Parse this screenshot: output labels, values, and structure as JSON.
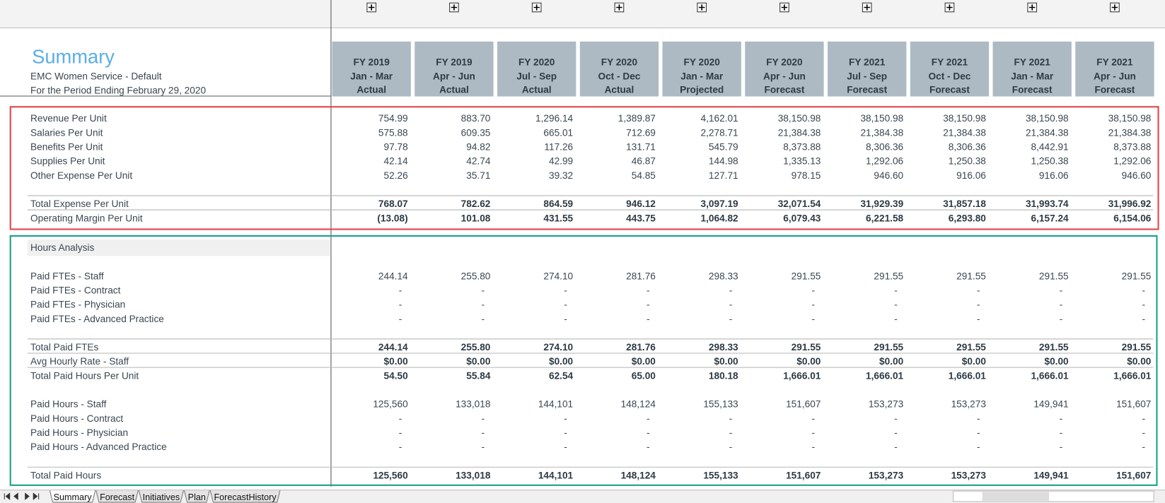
{
  "header": {
    "title": "Summary",
    "subtitle": "EMC Women Service - Default",
    "period": "For the Period Ending February 29, 2020"
  },
  "columns": [
    {
      "year": "FY 2019",
      "months": "Jan - Mar",
      "kind": "Actual"
    },
    {
      "year": "FY 2019",
      "months": "Apr - Jun",
      "kind": "Actual"
    },
    {
      "year": "FY 2020",
      "months": "Jul - Sep",
      "kind": "Actual"
    },
    {
      "year": "FY 2020",
      "months": "Oct - Dec",
      "kind": "Actual"
    },
    {
      "year": "FY 2020",
      "months": "Jan - Mar",
      "kind": "Projected"
    },
    {
      "year": "FY 2020",
      "months": "Apr - Jun",
      "kind": "Forecast"
    },
    {
      "year": "FY 2021",
      "months": "Jul - Sep",
      "kind": "Forecast"
    },
    {
      "year": "FY 2021",
      "months": "Oct - Dec",
      "kind": "Forecast"
    },
    {
      "year": "FY 2021",
      "months": "Jan - Mar",
      "kind": "Forecast"
    },
    {
      "year": "FY 2021",
      "months": "Apr - Jun",
      "kind": "Forecast"
    }
  ],
  "sections": [
    {
      "groups": [
        {
          "total": false,
          "rows": [
            {
              "label": "Revenue Per Unit",
              "values": [
                "754.99",
                "883.70",
                "1,296.14",
                "1,389.87",
                "4,162.01",
                "38,150.98",
                "38,150.98",
                "38,150.98",
                "38,150.98",
                "38,150.98"
              ]
            },
            {
              "label": "Salaries Per Unit",
              "values": [
                "575.88",
                "609.35",
                "665.01",
                "712.69",
                "2,278.71",
                "21,384.38",
                "21,384.38",
                "21,384.38",
                "21,384.38",
                "21,384.38"
              ]
            },
            {
              "label": "Benefits Per Unit",
              "values": [
                "97.78",
                "94.82",
                "117.26",
                "131.71",
                "545.79",
                "8,373.88",
                "8,306.36",
                "8,306.36",
                "8,442.91",
                "8,373.88"
              ]
            },
            {
              "label": "Supplies Per Unit",
              "values": [
                "42.14",
                "42.74",
                "42.99",
                "46.87",
                "144.98",
                "1,335.13",
                "1,292.06",
                "1,250.38",
                "1,250.38",
                "1,292.06"
              ]
            },
            {
              "label": "Other Expense Per Unit",
              "values": [
                "52.26",
                "35.71",
                "39.32",
                "54.85",
                "127.71",
                "978.15",
                "946.60",
                "916.06",
                "916.06",
                "946.60"
              ]
            }
          ]
        },
        {
          "total": true,
          "rows": [
            {
              "label": "Total Expense Per Unit",
              "values": [
                "768.07",
                "782.62",
                "864.59",
                "946.12",
                "3,097.19",
                "32,071.54",
                "31,929.39",
                "31,857.18",
                "31,993.74",
                "31,996.92"
              ]
            },
            {
              "label": "Operating Margin Per Unit",
              "values": [
                "(13.08)",
                "101.08",
                "431.55",
                "443.75",
                "1,064.82",
                "6,079.43",
                "6,221.58",
                "6,293.80",
                "6,157.24",
                "6,154.06"
              ]
            }
          ]
        }
      ]
    },
    {
      "heading": "Hours Analysis",
      "groups": [
        {
          "total": false,
          "rows": [
            {
              "label": "Paid FTEs - Staff",
              "values": [
                "244.14",
                "255.80",
                "274.10",
                "281.76",
                "298.33",
                "291.55",
                "291.55",
                "291.55",
                "291.55",
                "291.55"
              ]
            },
            {
              "label": "Paid FTEs - Contract",
              "values": [
                "-",
                "-",
                "-",
                "-",
                "-",
                "-",
                "-",
                "-",
                "-",
                "-"
              ]
            },
            {
              "label": "Paid FTEs - Physician",
              "values": [
                "-",
                "-",
                "-",
                "-",
                "-",
                "-",
                "-",
                "-",
                "-",
                "-"
              ]
            },
            {
              "label": "Paid FTEs - Advanced Practice",
              "values": [
                "-",
                "-",
                "-",
                "-",
                "-",
                "-",
                "-",
                "-",
                "-",
                "-"
              ]
            }
          ]
        },
        {
          "total": true,
          "rows": [
            {
              "label": "Total Paid FTEs",
              "values": [
                "244.14",
                "255.80",
                "274.10",
                "281.76",
                "298.33",
                "291.55",
                "291.55",
                "291.55",
                "291.55",
                "291.55"
              ]
            },
            {
              "label": "Avg Hourly Rate - Staff",
              "values": [
                "$0.00",
                "$0.00",
                "$0.00",
                "$0.00",
                "$0.00",
                "$0.00",
                "$0.00",
                "$0.00",
                "$0.00",
                "$0.00"
              ]
            },
            {
              "label": "Total Paid Hours Per Unit",
              "values": [
                "54.50",
                "55.84",
                "62.54",
                "65.00",
                "180.18",
                "1,666.01",
                "1,666.01",
                "1,666.01",
                "1,666.01",
                "1,666.01"
              ]
            }
          ]
        },
        {
          "total": false,
          "rows": [
            {
              "label": "Paid Hours - Staff",
              "values": [
                "125,560",
                "133,018",
                "144,101",
                "148,124",
                "155,133",
                "151,607",
                "153,273",
                "153,273",
                "149,941",
                "151,607"
              ]
            },
            {
              "label": "Paid Hours - Contract",
              "values": [
                "-",
                "-",
                "-",
                "-",
                "-",
                "-",
                "-",
                "-",
                "-",
                "-"
              ]
            },
            {
              "label": "Paid Hours - Physician",
              "values": [
                "-",
                "-",
                "-",
                "-",
                "-",
                "-",
                "-",
                "-",
                "-",
                "-"
              ]
            },
            {
              "label": "Paid Hours - Advanced Practice",
              "values": [
                "-",
                "-",
                "-",
                "-",
                "-",
                "-",
                "-",
                "-",
                "-",
                "-"
              ]
            }
          ]
        },
        {
          "total": true,
          "rows": [
            {
              "label": "Total Paid Hours",
              "values": [
                "125,560",
                "133,018",
                "144,101",
                "148,124",
                "155,133",
                "151,607",
                "153,273",
                "153,273",
                "149,941",
                "151,607"
              ]
            }
          ]
        }
      ]
    }
  ],
  "tabs": [
    "Summary",
    "Forecast",
    "Initiatives",
    "Plan",
    "ForecastHistory"
  ]
}
